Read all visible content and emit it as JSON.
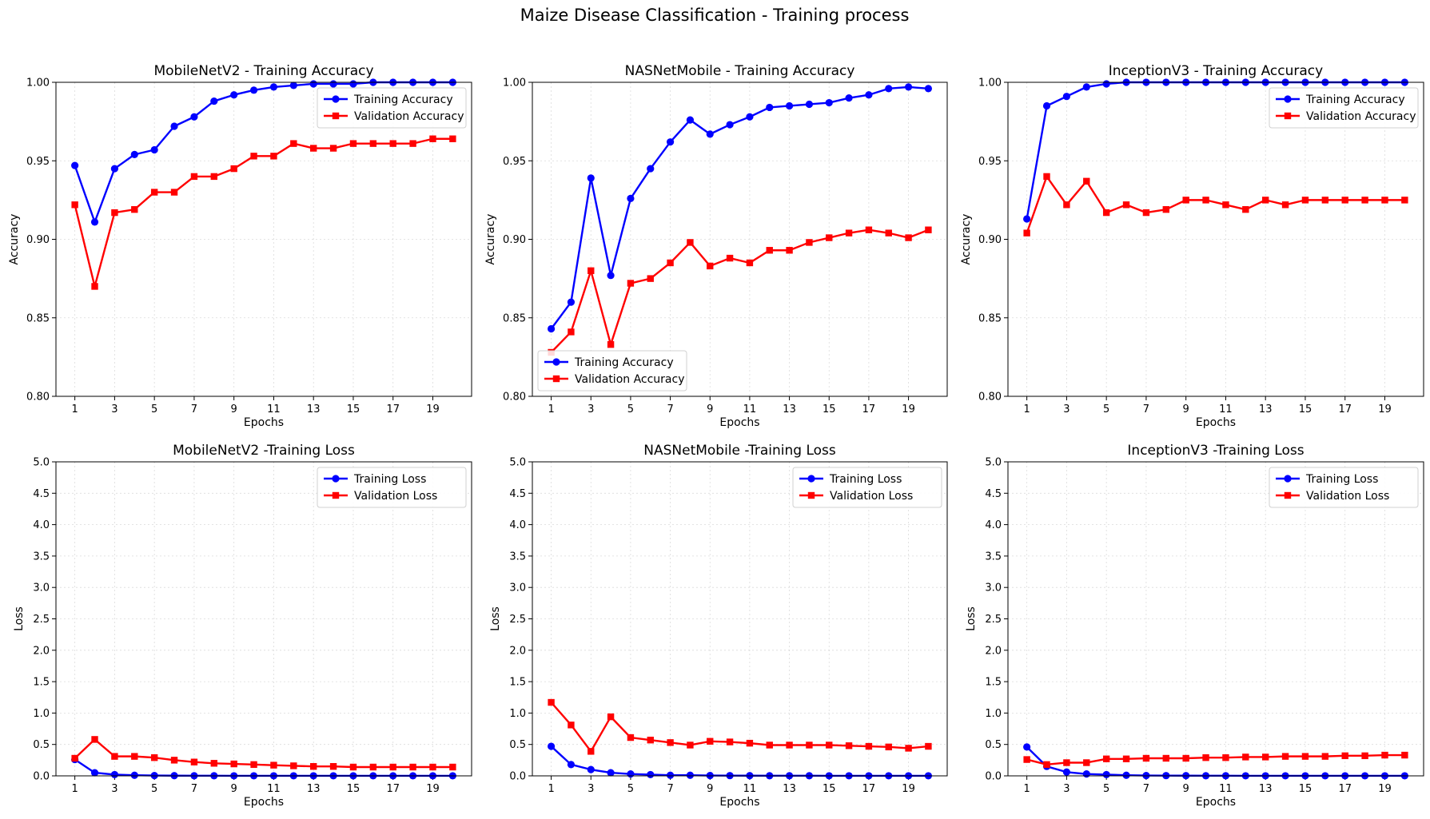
{
  "figure_title": "Maize Disease Classification -  Training process",
  "colors": {
    "training": "#0000ff",
    "validation": "#ff0000",
    "grid": "#cccccc",
    "axis": "#000000"
  },
  "chart_data": [
    {
      "type": "line",
      "title": "MobileNetV2 - Training Accuracy",
      "xlabel": "Epochs",
      "ylabel": "Accuracy",
      "x": [
        1,
        2,
        3,
        4,
        5,
        6,
        7,
        8,
        9,
        10,
        11,
        12,
        13,
        14,
        15,
        16,
        17,
        18,
        19,
        20
      ],
      "xticks": [
        1,
        3,
        5,
        7,
        9,
        11,
        13,
        15,
        17,
        19
      ],
      "ylim": [
        0.8,
        1.0
      ],
      "yticks": [
        "0.80",
        "0.85",
        "0.90",
        "0.95",
        "1.00"
      ],
      "legend_position": "top-right",
      "grid": true,
      "series": [
        {
          "name": "Training Accuracy",
          "marker": "circle",
          "color": "#0000ff",
          "values": [
            0.947,
            0.911,
            0.945,
            0.954,
            0.957,
            0.972,
            0.978,
            0.988,
            0.992,
            0.995,
            0.997,
            0.998,
            0.999,
            0.999,
            0.999,
            1.0,
            1.0,
            1.0,
            1.0,
            1.0
          ]
        },
        {
          "name": "Validation Accuracy",
          "marker": "square",
          "color": "#ff0000",
          "values": [
            0.922,
            0.87,
            0.917,
            0.919,
            0.93,
            0.93,
            0.94,
            0.94,
            0.945,
            0.953,
            0.953,
            0.961,
            0.958,
            0.958,
            0.961,
            0.961,
            0.961,
            0.961,
            0.964,
            0.964
          ]
        }
      ]
    },
    {
      "type": "line",
      "title": "NASNetMobile - Training Accuracy",
      "xlabel": "Epochs",
      "ylabel": "Accuracy",
      "x": [
        1,
        2,
        3,
        4,
        5,
        6,
        7,
        8,
        9,
        10,
        11,
        12,
        13,
        14,
        15,
        16,
        17,
        18,
        19,
        20
      ],
      "xticks": [
        1,
        3,
        5,
        7,
        9,
        11,
        13,
        15,
        17,
        19
      ],
      "ylim": [
        0.8,
        1.0
      ],
      "yticks": [
        "0.80",
        "0.85",
        "0.90",
        "0.95",
        "1.00"
      ],
      "legend_position": "bottom-left",
      "grid": true,
      "series": [
        {
          "name": "Training Accuracy",
          "marker": "circle",
          "color": "#0000ff",
          "values": [
            0.843,
            0.86,
            0.939,
            0.877,
            0.926,
            0.945,
            0.962,
            0.976,
            0.967,
            0.973,
            0.978,
            0.984,
            0.985,
            0.986,
            0.987,
            0.99,
            0.992,
            0.996,
            0.997,
            0.996
          ]
        },
        {
          "name": "Validation Accuracy",
          "marker": "square",
          "color": "#ff0000",
          "values": [
            0.828,
            0.841,
            0.88,
            0.833,
            0.872,
            0.875,
            0.885,
            0.898,
            0.883,
            0.888,
            0.885,
            0.893,
            0.893,
            0.898,
            0.901,
            0.904,
            0.906,
            0.904,
            0.901,
            0.906
          ]
        }
      ]
    },
    {
      "type": "line",
      "title": "InceptionV3 - Training Accuracy",
      "xlabel": "Epochs",
      "ylabel": "Accuracy",
      "x": [
        1,
        2,
        3,
        4,
        5,
        6,
        7,
        8,
        9,
        10,
        11,
        12,
        13,
        14,
        15,
        16,
        17,
        18,
        19,
        20
      ],
      "xticks": [
        1,
        3,
        5,
        7,
        9,
        11,
        13,
        15,
        17,
        19
      ],
      "ylim": [
        0.8,
        1.0
      ],
      "yticks": [
        "0.80",
        "0.85",
        "0.90",
        "0.95",
        "1.00"
      ],
      "legend_position": "top-right",
      "grid": true,
      "series": [
        {
          "name": "Training Accuracy",
          "marker": "circle",
          "color": "#0000ff",
          "values": [
            0.913,
            0.985,
            0.991,
            0.997,
            0.999,
            1.0,
            1.0,
            1.0,
            1.0,
            1.0,
            1.0,
            1.0,
            1.0,
            1.0,
            1.0,
            1.0,
            1.0,
            1.0,
            1.0,
            1.0
          ]
        },
        {
          "name": "Validation Accuracy",
          "marker": "square",
          "color": "#ff0000",
          "values": [
            0.904,
            0.94,
            0.922,
            0.937,
            0.917,
            0.922,
            0.917,
            0.919,
            0.925,
            0.925,
            0.922,
            0.919,
            0.925,
            0.922,
            0.925,
            0.925,
            0.925,
            0.925,
            0.925,
            0.925
          ]
        }
      ]
    },
    {
      "type": "line",
      "title": "MobileNetV2 -Training Loss",
      "xlabel": "Epochs",
      "ylabel": "Loss",
      "x": [
        1,
        2,
        3,
        4,
        5,
        6,
        7,
        8,
        9,
        10,
        11,
        12,
        13,
        14,
        15,
        16,
        17,
        18,
        19,
        20
      ],
      "xticks": [
        1,
        3,
        5,
        7,
        9,
        11,
        13,
        15,
        17,
        19
      ],
      "ylim": [
        0.0,
        5.0
      ],
      "yticks": [
        "0.0",
        "0.5",
        "1.0",
        "1.5",
        "2.0",
        "2.5",
        "3.0",
        "3.5",
        "4.0",
        "4.5",
        "5.0"
      ],
      "legend_position": "top-right",
      "grid": true,
      "series": [
        {
          "name": "Training Loss",
          "marker": "circle",
          "color": "#0000ff",
          "values": [
            0.26,
            0.05,
            0.02,
            0.01,
            0.005,
            0.003,
            0.002,
            0.002,
            0.001,
            0.001,
            0.001,
            0.001,
            0.001,
            0.001,
            0.001,
            0.001,
            0.001,
            0.001,
            0.001,
            0.001
          ]
        },
        {
          "name": "Validation Loss",
          "marker": "square",
          "color": "#ff0000",
          "values": [
            0.28,
            0.58,
            0.31,
            0.31,
            0.29,
            0.25,
            0.22,
            0.2,
            0.19,
            0.18,
            0.17,
            0.16,
            0.15,
            0.15,
            0.14,
            0.14,
            0.14,
            0.14,
            0.14,
            0.14
          ]
        }
      ]
    },
    {
      "type": "line",
      "title": "NASNetMobile -Training Loss",
      "xlabel": "Epochs",
      "ylabel": "Loss",
      "x": [
        1,
        2,
        3,
        4,
        5,
        6,
        7,
        8,
        9,
        10,
        11,
        12,
        13,
        14,
        15,
        16,
        17,
        18,
        19,
        20
      ],
      "xticks": [
        1,
        3,
        5,
        7,
        9,
        11,
        13,
        15,
        17,
        19
      ],
      "ylim": [
        0.0,
        5.0
      ],
      "yticks": [
        "0.0",
        "0.5",
        "1.0",
        "1.5",
        "2.0",
        "2.5",
        "3.0",
        "3.5",
        "4.0",
        "4.5",
        "5.0"
      ],
      "legend_position": "top-right",
      "grid": true,
      "series": [
        {
          "name": "Training Loss",
          "marker": "circle",
          "color": "#0000ff",
          "values": [
            0.47,
            0.18,
            0.1,
            0.05,
            0.03,
            0.02,
            0.01,
            0.01,
            0.005,
            0.004,
            0.003,
            0.002,
            0.002,
            0.002,
            0.001,
            0.001,
            0.001,
            0.001,
            0.001,
            0.001
          ]
        },
        {
          "name": "Validation Loss",
          "marker": "square",
          "color": "#ff0000",
          "values": [
            1.17,
            0.81,
            0.39,
            0.94,
            0.61,
            0.57,
            0.53,
            0.49,
            0.55,
            0.54,
            0.52,
            0.49,
            0.49,
            0.49,
            0.49,
            0.48,
            0.47,
            0.46,
            0.44,
            0.47
          ]
        }
      ]
    },
    {
      "type": "line",
      "title": "InceptionV3 -Training Loss",
      "xlabel": "Epochs",
      "ylabel": "Loss",
      "x": [
        1,
        2,
        3,
        4,
        5,
        6,
        7,
        8,
        9,
        10,
        11,
        12,
        13,
        14,
        15,
        16,
        17,
        18,
        19,
        20
      ],
      "xticks": [
        1,
        3,
        5,
        7,
        9,
        11,
        13,
        15,
        17,
        19
      ],
      "ylim": [
        0.0,
        5.0
      ],
      "yticks": [
        "0.0",
        "0.5",
        "1.0",
        "1.5",
        "2.0",
        "2.5",
        "3.0",
        "3.5",
        "4.0",
        "4.5",
        "5.0"
      ],
      "legend_position": "top-right",
      "grid": true,
      "series": [
        {
          "name": "Training Loss",
          "marker": "circle",
          "color": "#0000ff",
          "values": [
            0.46,
            0.15,
            0.06,
            0.03,
            0.02,
            0.01,
            0.005,
            0.004,
            0.003,
            0.002,
            0.002,
            0.001,
            0.001,
            0.001,
            0.001,
            0.001,
            0.001,
            0.001,
            0.001,
            0.001
          ]
        },
        {
          "name": "Validation Loss",
          "marker": "square",
          "color": "#ff0000",
          "values": [
            0.26,
            0.18,
            0.21,
            0.21,
            0.27,
            0.27,
            0.28,
            0.28,
            0.28,
            0.29,
            0.29,
            0.3,
            0.3,
            0.31,
            0.31,
            0.31,
            0.32,
            0.32,
            0.33,
            0.33
          ]
        }
      ]
    }
  ]
}
